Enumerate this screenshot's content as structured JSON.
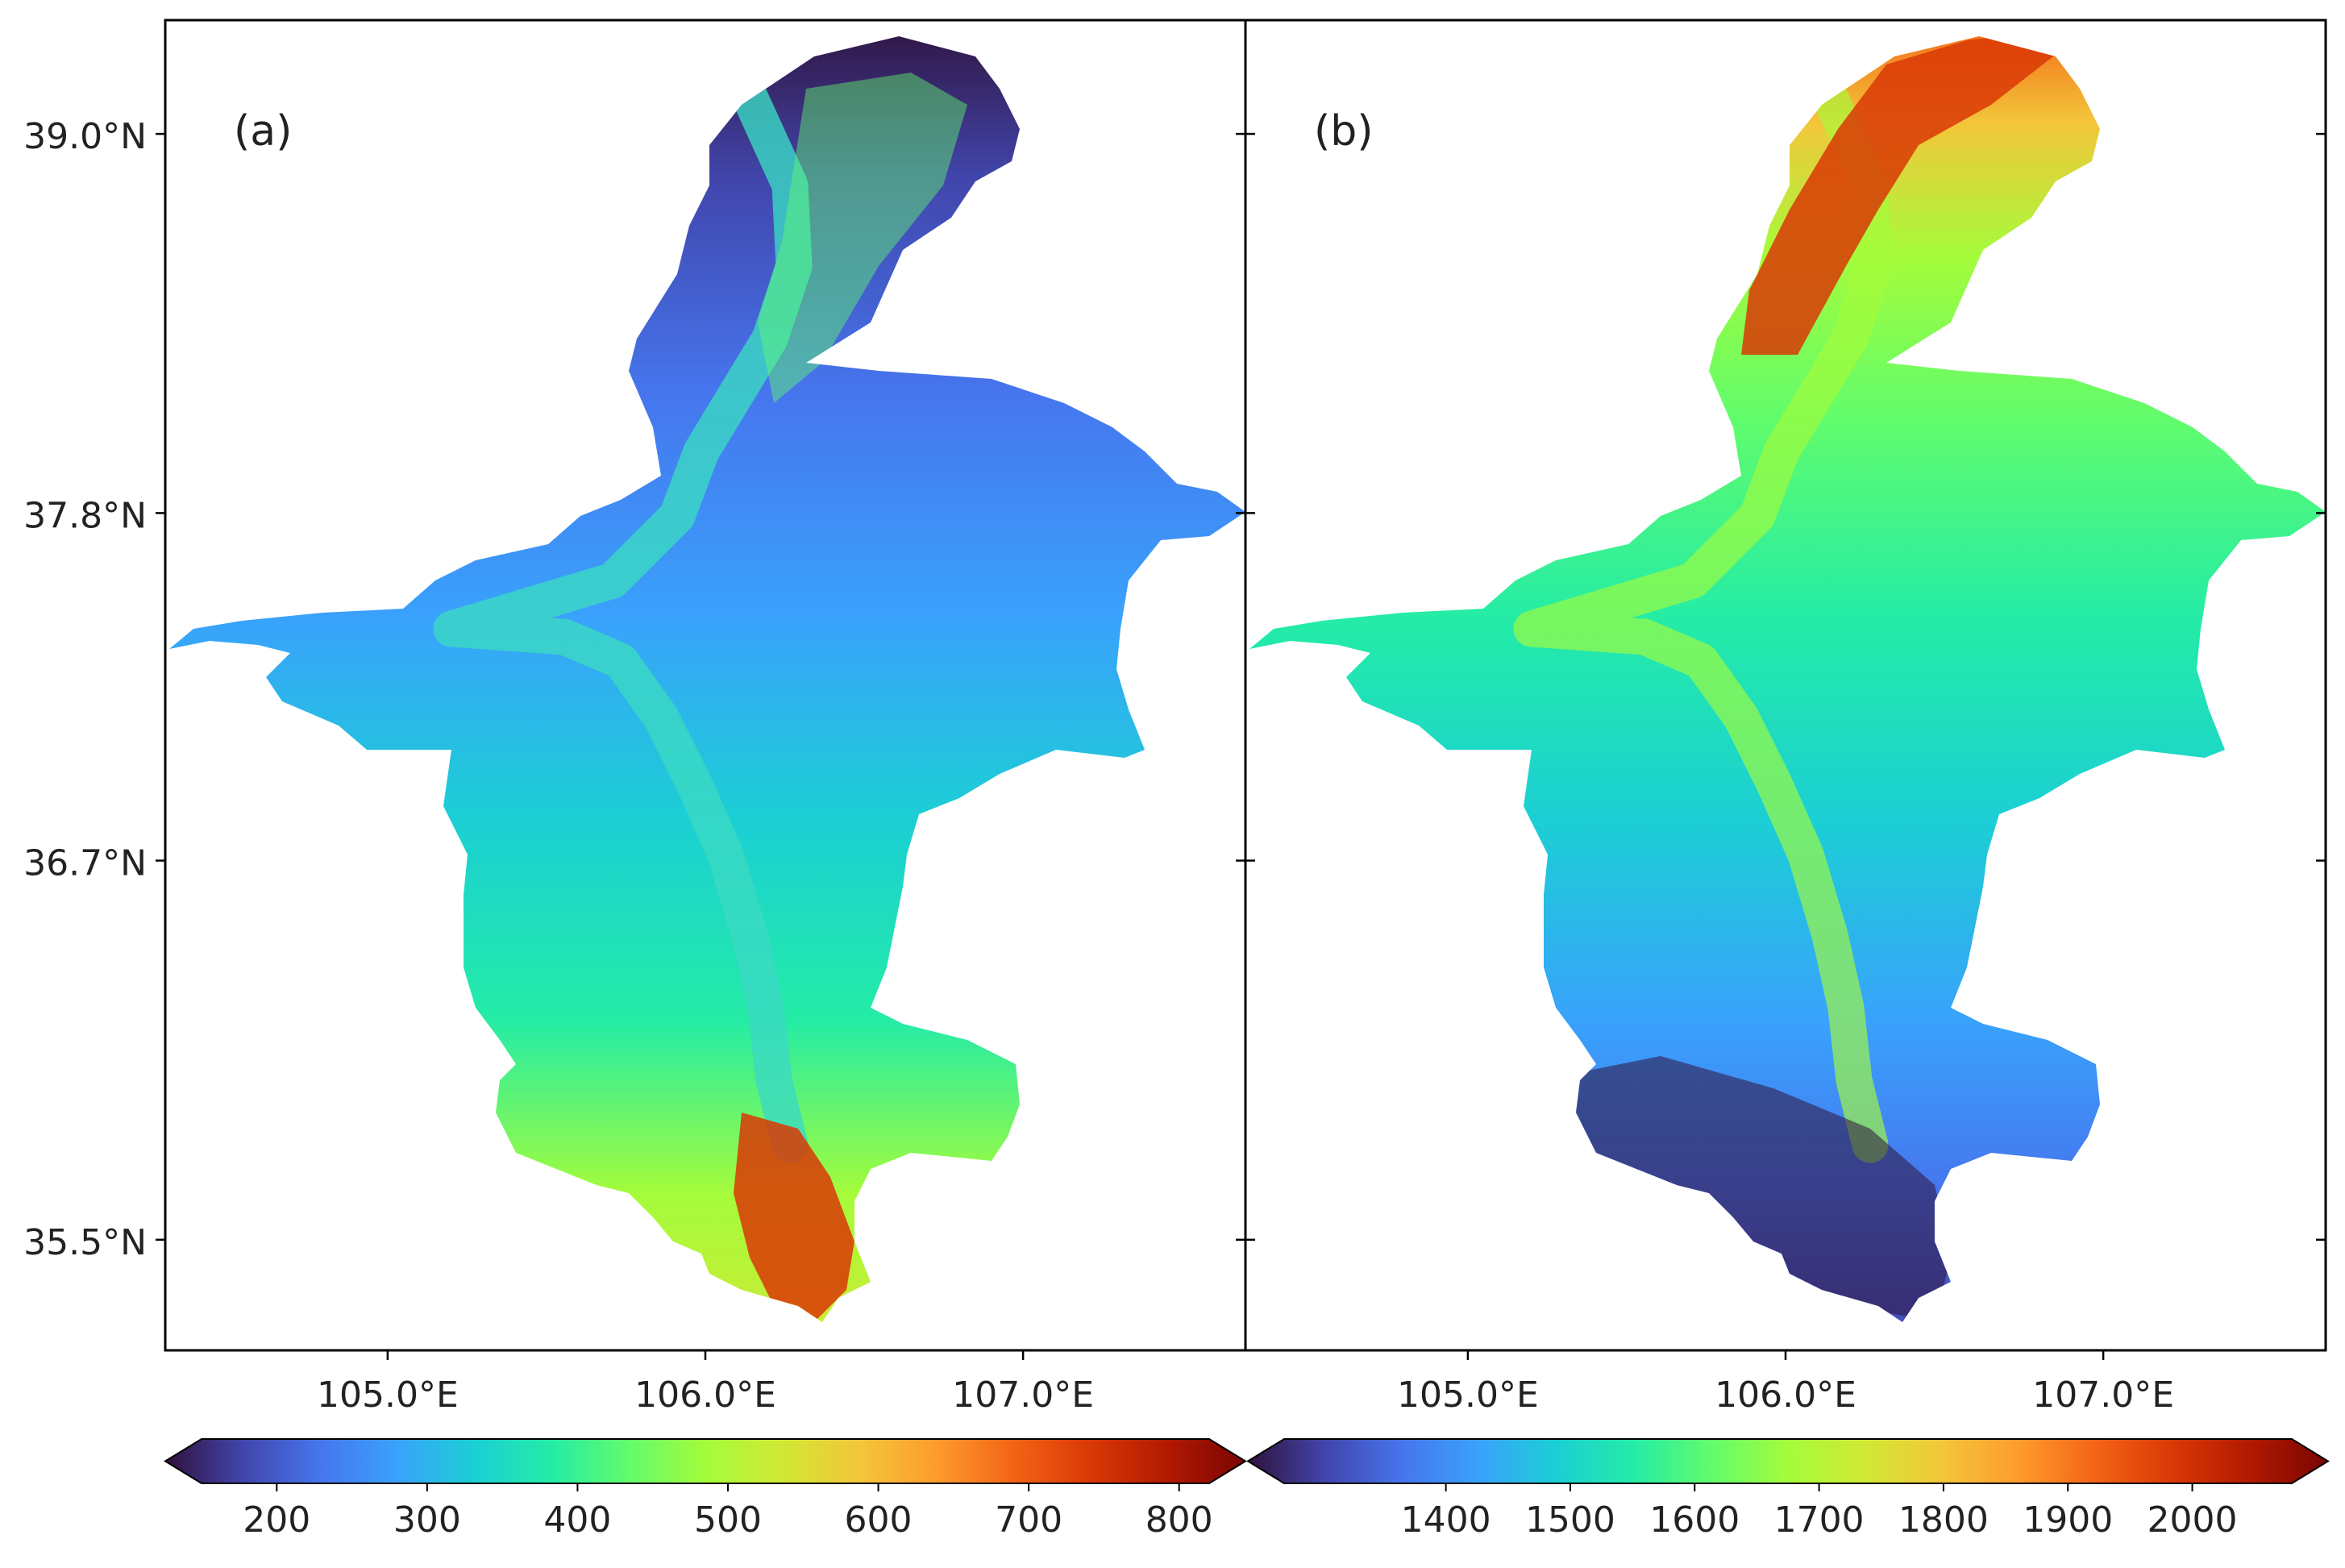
{
  "panels": [
    {
      "id": "a",
      "label": "(a)",
      "colorbar": {
        "min": 150,
        "max": 820,
        "ticks": [
          "200",
          "300",
          "400",
          "500",
          "600",
          "700",
          "800"
        ],
        "tick_values": [
          200,
          300,
          400,
          500,
          600,
          700,
          800
        ],
        "extend": "both"
      }
    },
    {
      "id": "b",
      "label": "(b)",
      "colorbar": {
        "min": 1270,
        "max": 2080,
        "ticks": [
          "1400",
          "1500",
          "1600",
          "1700",
          "1800",
          "1900",
          "2000"
        ],
        "tick_values": [
          1400,
          1500,
          1600,
          1700,
          1800,
          1900,
          2000
        ],
        "extend": "both"
      }
    }
  ],
  "axes": {
    "lat_ticks": [
      "39.0°N",
      "37.8°N",
      "36.7°N",
      "35.5°N"
    ],
    "lat_values": [
      39.0,
      37.8,
      36.7,
      35.5
    ],
    "lon_ticks": [
      "105.0°E",
      "106.0°E",
      "107.0°E"
    ],
    "lon_values": [
      105.0,
      106.0,
      107.0
    ],
    "lon_range": [
      104.3,
      107.7
    ],
    "lat_range": [
      35.2,
      39.4
    ]
  },
  "colors": {
    "turbo": [
      "#30123b",
      "#4145ab",
      "#4675ed",
      "#39a2fc",
      "#1bcfd4",
      "#24eca6",
      "#61fc6c",
      "#a4fc3b",
      "#d1e834",
      "#f3c63a",
      "#fe9b2d",
      "#f36315",
      "#d93806",
      "#b11901",
      "#7a0403"
    ]
  }
}
